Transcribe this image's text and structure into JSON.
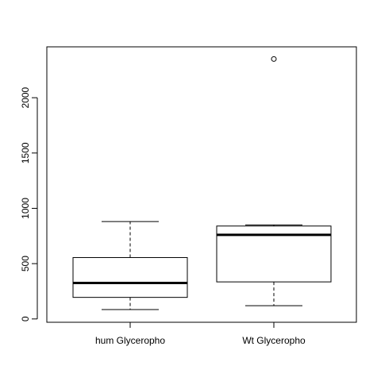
{
  "chart_data": {
    "type": "box",
    "title": "",
    "xlabel": "",
    "ylabel": "",
    "ylim": [
      -30,
      2460
    ],
    "yticks": [
      0,
      500,
      1000,
      1500,
      2000
    ],
    "ytick_labels": [
      "0",
      "500",
      "1000",
      "1500",
      "2000"
    ],
    "grid": false,
    "categories": [
      "hum Glycerophо",
      "Wt Glycerophо"
    ],
    "boxes": [
      {
        "category": "hum Glycerophо",
        "whisker_low": 85,
        "q1": 195,
        "median": 325,
        "q3": 555,
        "whisker_high": 880,
        "outliers": []
      },
      {
        "category": "Wt Glycerophо",
        "whisker_low": 120,
        "q1": 335,
        "median": 760,
        "q3": 840,
        "whisker_high": 850,
        "outliers": [
          2350
        ]
      }
    ]
  }
}
